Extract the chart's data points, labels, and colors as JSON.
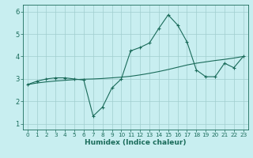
{
  "xlabel": "Humidex (Indice chaleur)",
  "background_color": "#c8eef0",
  "line_color": "#1a6b5a",
  "grid_color": "#a0cece",
  "xlim": [
    -0.5,
    23.5
  ],
  "ylim": [
    0.75,
    6.3
  ],
  "xticks": [
    0,
    1,
    2,
    3,
    4,
    5,
    6,
    7,
    8,
    9,
    10,
    11,
    12,
    13,
    14,
    15,
    16,
    17,
    18,
    19,
    20,
    21,
    22,
    23
  ],
  "yticks": [
    1,
    2,
    3,
    4,
    5,
    6
  ],
  "main_x": [
    0,
    1,
    2,
    3,
    4,
    5,
    6,
    7,
    8,
    9,
    10,
    11,
    12,
    13,
    14,
    15,
    16,
    17,
    18,
    19,
    20,
    21,
    22,
    23
  ],
  "main_y": [
    2.75,
    2.9,
    3.0,
    3.05,
    3.05,
    3.0,
    2.95,
    1.35,
    1.75,
    2.6,
    3.0,
    4.25,
    4.4,
    4.6,
    5.25,
    5.85,
    5.4,
    4.65,
    3.4,
    3.1,
    3.1,
    3.7,
    3.5,
    4.0
  ],
  "trend_x": [
    0,
    1,
    2,
    3,
    4,
    5,
    6,
    7,
    8,
    9,
    10,
    11,
    12,
    13,
    14,
    15,
    16,
    17,
    18,
    19,
    20,
    21,
    22,
    23
  ],
  "trend_y": [
    2.75,
    2.82,
    2.87,
    2.91,
    2.94,
    2.97,
    2.99,
    3.0,
    3.02,
    3.05,
    3.08,
    3.12,
    3.18,
    3.25,
    3.33,
    3.42,
    3.52,
    3.62,
    3.7,
    3.76,
    3.82,
    3.87,
    3.93,
    4.0
  ],
  "xlabel_fontsize": 6.5,
  "tick_fontsize_x": 5.2,
  "tick_fontsize_y": 6.0
}
